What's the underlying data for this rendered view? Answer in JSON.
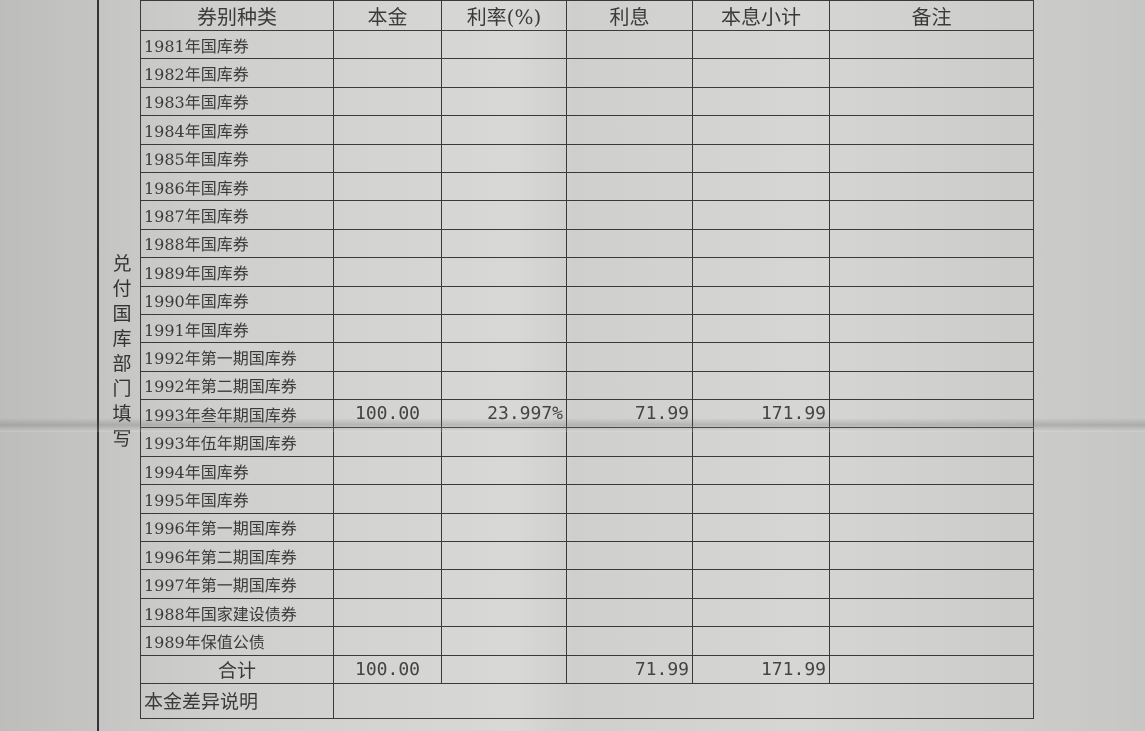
{
  "side_label": "兑付国库部门填写",
  "headers": [
    "券别种类",
    "本金",
    "利率(%)",
    "利息",
    "本息小计",
    "备注"
  ],
  "rows": [
    {
      "name": "1981年国库券",
      "principal": "",
      "rate": "",
      "interest": "",
      "subtotal": "",
      "note": ""
    },
    {
      "name": "1982年国库券",
      "principal": "",
      "rate": "",
      "interest": "",
      "subtotal": "",
      "note": ""
    },
    {
      "name": "1983年国库券",
      "principal": "",
      "rate": "",
      "interest": "",
      "subtotal": "",
      "note": ""
    },
    {
      "name": "1984年国库券",
      "principal": "",
      "rate": "",
      "interest": "",
      "subtotal": "",
      "note": ""
    },
    {
      "name": "1985年国库券",
      "principal": "",
      "rate": "",
      "interest": "",
      "subtotal": "",
      "note": ""
    },
    {
      "name": "1986年国库券",
      "principal": "",
      "rate": "",
      "interest": "",
      "subtotal": "",
      "note": ""
    },
    {
      "name": "1987年国库券",
      "principal": "",
      "rate": "",
      "interest": "",
      "subtotal": "",
      "note": ""
    },
    {
      "name": "1988年国库券",
      "principal": "",
      "rate": "",
      "interest": "",
      "subtotal": "",
      "note": ""
    },
    {
      "name": "1989年国库券",
      "principal": "",
      "rate": "",
      "interest": "",
      "subtotal": "",
      "note": ""
    },
    {
      "name": "1990年国库券",
      "principal": "",
      "rate": "",
      "interest": "",
      "subtotal": "",
      "note": ""
    },
    {
      "name": "1991年国库券",
      "principal": "",
      "rate": "",
      "interest": "",
      "subtotal": "",
      "note": ""
    },
    {
      "name": "1992年第一期国库券",
      "principal": "",
      "rate": "",
      "interest": "",
      "subtotal": "",
      "note": ""
    },
    {
      "name": "1992年第二期国库券",
      "principal": "",
      "rate": "",
      "interest": "",
      "subtotal": "",
      "note": ""
    },
    {
      "name": "1993年叁年期国库券",
      "principal": "100.00",
      "rate": "23.997%",
      "interest": "71.99",
      "subtotal": "171.99",
      "note": ""
    },
    {
      "name": "1993年伍年期国库券",
      "principal": "",
      "rate": "",
      "interest": "",
      "subtotal": "",
      "note": ""
    },
    {
      "name": "1994年国库券",
      "principal": "",
      "rate": "",
      "interest": "",
      "subtotal": "",
      "note": ""
    },
    {
      "name": "1995年国库券",
      "principal": "",
      "rate": "",
      "interest": "",
      "subtotal": "",
      "note": ""
    },
    {
      "name": "1996年第一期国库券",
      "principal": "",
      "rate": "",
      "interest": "",
      "subtotal": "",
      "note": ""
    },
    {
      "name": "1996年第二期国库券",
      "principal": "",
      "rate": "",
      "interest": "",
      "subtotal": "",
      "note": ""
    },
    {
      "name": "1997年第一期国库券",
      "principal": "",
      "rate": "",
      "interest": "",
      "subtotal": "",
      "note": ""
    },
    {
      "name": "1988年国家建设债券",
      "principal": "",
      "rate": "",
      "interest": "",
      "subtotal": "",
      "note": ""
    },
    {
      "name": "1989年保值公债",
      "principal": "",
      "rate": "",
      "interest": "",
      "subtotal": "",
      "note": ""
    }
  ],
  "total": {
    "label": "合计",
    "principal": "100.00",
    "rate": "",
    "interest": "71.99",
    "subtotal": "171.99",
    "note": ""
  },
  "principal_diff": {
    "label": "本金差异说明",
    "value": ""
  }
}
